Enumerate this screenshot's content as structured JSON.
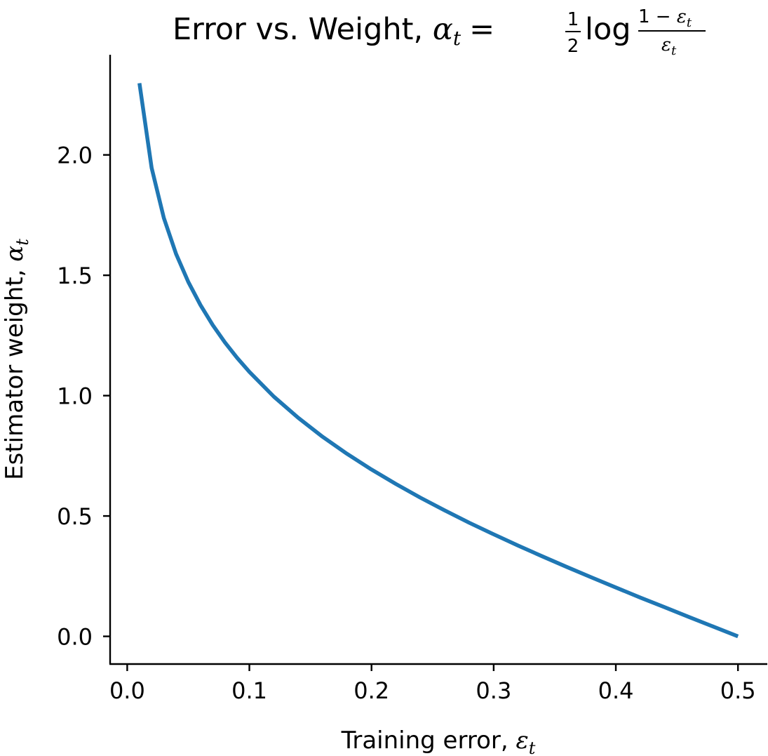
{
  "chart_data": {
    "type": "line",
    "title": {
      "prefix": "Error vs. Weight, ",
      "alpha": "α",
      "sub_t": "t",
      "equals": "=",
      "half_num": "1",
      "half_den": "2",
      "log": "log",
      "frac_num_prefix": "1 − ",
      "epsilon": "ε"
    },
    "xlabel": {
      "text": "Training error, ",
      "symbol": "ε",
      "subscript": "t"
    },
    "ylabel": {
      "text": "Estimator weight, ",
      "symbol": "α",
      "subscript": "t"
    },
    "xlim": [
      -0.014,
      0.524
    ],
    "ylim": [
      -0.115,
      2.416
    ],
    "xticks": [
      0.0,
      0.1,
      0.2,
      0.3,
      0.4,
      0.5
    ],
    "xtick_labels": [
      "0.0",
      "0.1",
      "0.2",
      "0.3",
      "0.4",
      "0.5"
    ],
    "yticks": [
      0.0,
      0.5,
      1.0,
      1.5,
      2.0
    ],
    "ytick_labels": [
      "0.0",
      "0.5",
      "1.0",
      "1.5",
      "2.0"
    ],
    "grid": false,
    "series": [
      {
        "color": "#1f77b4",
        "x": [
          0.01,
          0.02,
          0.03,
          0.04,
          0.05,
          0.06,
          0.07,
          0.08,
          0.09,
          0.1,
          0.12,
          0.14,
          0.16,
          0.18,
          0.2,
          0.22,
          0.24,
          0.26,
          0.28,
          0.3,
          0.32,
          0.34,
          0.36,
          0.38,
          0.4,
          0.42,
          0.44,
          0.46,
          0.48,
          0.5
        ],
        "y": [
          2.298,
          1.946,
          1.738,
          1.589,
          1.472,
          1.376,
          1.293,
          1.221,
          1.157,
          1.099,
          0.996,
          0.908,
          0.829,
          0.758,
          0.693,
          0.633,
          0.576,
          0.523,
          0.472,
          0.424,
          0.377,
          0.332,
          0.288,
          0.245,
          0.203,
          0.161,
          0.121,
          0.08,
          0.04,
          0.0
        ]
      }
    ]
  }
}
